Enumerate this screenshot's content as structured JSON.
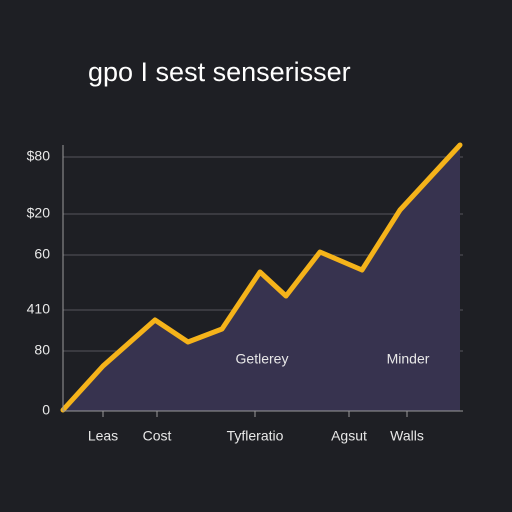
{
  "chart_data": {
    "type": "area",
    "title": "gpo I sest senserisser",
    "x": [
      0,
      40,
      92,
      125,
      159,
      197,
      223,
      257,
      299,
      337,
      397
    ],
    "values": [
      1,
      45,
      91,
      69,
      82,
      139,
      115,
      159,
      141,
      201,
      266
    ],
    "color": "#f5b31a",
    "fill": "#37334f",
    "xlim": [
      0,
      400
    ],
    "ylim": [
      0,
      270
    ],
    "xticks": [
      {
        "value": 40,
        "label": "Leas"
      },
      {
        "value": 94,
        "label": "Cost"
      },
      {
        "value": 192,
        "label": "Tyfleratio"
      },
      {
        "value": 286,
        "label": "Agsut"
      },
      {
        "value": 344,
        "label": "Walls"
      }
    ],
    "yticks": [
      0,
      {
        "value": 60,
        "label": "80"
      },
      {
        "value": 101,
        "label": "410"
      },
      {
        "value": 156,
        "label": "60"
      },
      {
        "value": 197,
        "label": "$20"
      },
      {
        "value": 254,
        "label": "$80"
      }
    ],
    "annotations": [
      {
        "text": "Getlerey",
        "x": 199,
        "y": 51
      },
      {
        "text": "Minder",
        "x": 345,
        "y": 51
      }
    ],
    "grid": true
  }
}
